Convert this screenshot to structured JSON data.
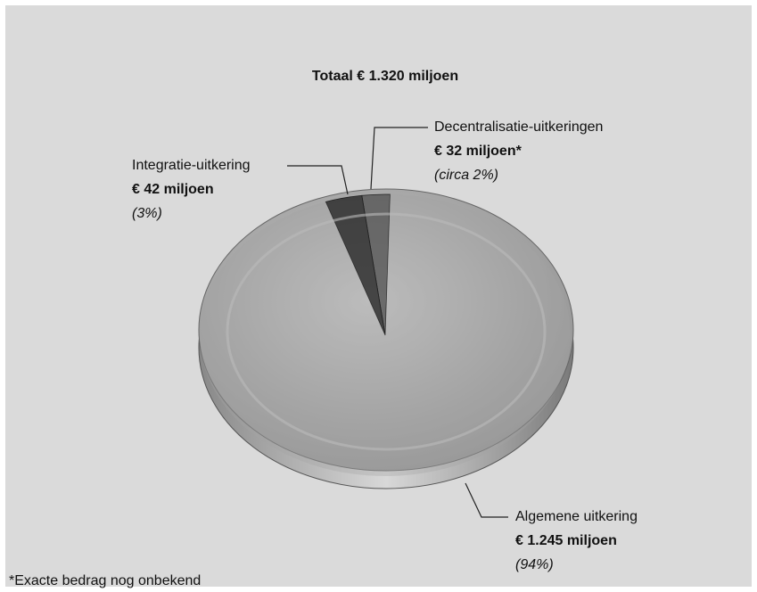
{
  "chart_data": {
    "type": "pie",
    "title": "Totaal € 1.320 miljoen",
    "categories": [
      "Algemene uitkering",
      "Integratie-uitkering",
      "Decentralisatie-uitkeringen"
    ],
    "values": [
      1245,
      42,
      32
    ],
    "value_labels": [
      "€ 1.245 miljoen",
      "€ 42 miljoen",
      "€ 32 miljoen*"
    ],
    "percent_labels": [
      "(94%)",
      "(3%)",
      "(circa 2%)"
    ],
    "colors": [
      "#a4a4a4",
      "#2e2e2e",
      "#5a5a5a"
    ],
    "footnote": "*Exacte bedrag nog onbekend"
  }
}
